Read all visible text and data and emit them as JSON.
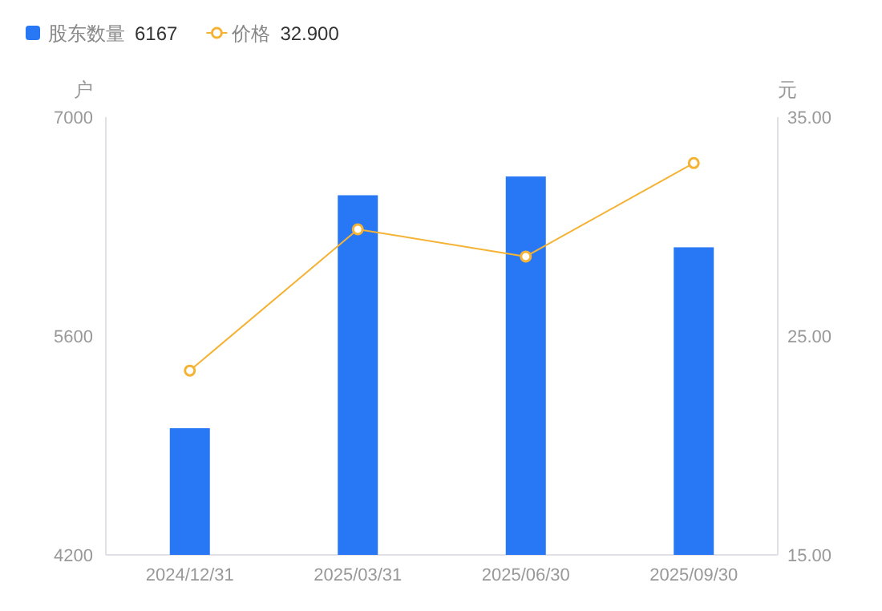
{
  "chart_data": {
    "type": "bar",
    "categories": [
      "2024/12/31",
      "2025/03/31",
      "2025/06/30",
      "2025/09/30"
    ],
    "series": [
      {
        "name": "股东数量",
        "color": "#2878f5",
        "values": [
          5010,
          6500,
          6620,
          6167
        ]
      },
      {
        "name": "价格",
        "type": "line",
        "axis": "y2",
        "color": "#f5b335",
        "marker": "circle",
        "values": [
          23.42,
          29.87,
          28.63,
          32.9
        ]
      }
    ],
    "ylabel": "户",
    "y2label": "元",
    "ylim": [
      4200,
      7000
    ],
    "yticks": [
      4200,
      5600,
      7000
    ],
    "y2lim": [
      15,
      35
    ],
    "y2ticks": [
      {
        "value": 15,
        "label": "15.00"
      },
      {
        "value": 25,
        "label": "25.00"
      },
      {
        "value": 35,
        "label": "35.00"
      }
    ],
    "annotations": [
      "6167",
      "32.900"
    ],
    "legend": "top left",
    "grid": false
  }
}
